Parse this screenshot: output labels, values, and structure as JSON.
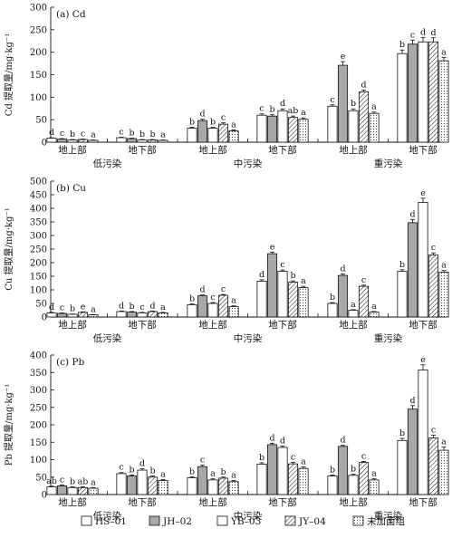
{
  "chart_data": [
    {
      "type": "bar",
      "title": "(a) Cd",
      "ylabel": "Cd 提取量/mg·kg⁻¹",
      "ylim": [
        0,
        300
      ],
      "yticks": [
        0,
        50,
        100,
        150,
        200,
        250,
        300
      ],
      "categories": [
        "地上部",
        "地下部",
        "地上部",
        "地下部",
        "地上部",
        "地下部"
      ],
      "groups": [
        "低污染",
        "中污染",
        "重污染"
      ],
      "series": [
        {
          "name": "HS–01",
          "values": [
            9,
            10,
            31,
            60,
            80,
            197
          ],
          "letters": [
            "d",
            "c",
            "b",
            "c",
            "c",
            "b"
          ]
        },
        {
          "name": "JH–02",
          "values": [
            7,
            8,
            48,
            58,
            171,
            218
          ],
          "letters": [
            "c",
            "b",
            "d",
            "b",
            "e",
            "c"
          ]
        },
        {
          "name": "YB–03",
          "values": [
            5,
            5,
            31,
            70,
            70,
            223
          ],
          "letters": [
            "b",
            "b",
            "b",
            "d",
            "b",
            "d"
          ]
        },
        {
          "name": "JY–04",
          "values": [
            6,
            5,
            40,
            55,
            112,
            223
          ],
          "letters": [
            "c",
            "b",
            "c",
            "ab",
            "d",
            "d"
          ]
        },
        {
          "name": "未加菌组",
          "values": [
            4,
            4,
            25,
            51,
            64,
            181
          ],
          "letters": [
            "a",
            "a",
            "a",
            "a",
            "a",
            "a"
          ]
        }
      ],
      "errors": [
        [
          1,
          1,
          2,
          3,
          3,
          8
        ],
        [
          1,
          1,
          3,
          3,
          8,
          9
        ],
        [
          1,
          1,
          2,
          4,
          4,
          10
        ],
        [
          1,
          1,
          3,
          3,
          4,
          9
        ],
        [
          1,
          1,
          2,
          3,
          3,
          7
        ]
      ]
    },
    {
      "type": "bar",
      "title": "(b) Cu",
      "ylabel": "Cu 提取量/mg·kg⁻¹",
      "ylim": [
        0,
        500
      ],
      "yticks": [
        0,
        50,
        100,
        150,
        200,
        250,
        300,
        350,
        400,
        450,
        500
      ],
      "categories": [
        "地上部",
        "地下部",
        "地上部",
        "地下部",
        "地上部",
        "地下部"
      ],
      "groups": [
        "低污染",
        "中污染",
        "重污染"
      ],
      "series": [
        {
          "name": "HS–01",
          "values": [
            15,
            20,
            45,
            132,
            50,
            168
          ],
          "letters": [
            "d",
            "d",
            "b",
            "d",
            "b",
            "b"
          ]
        },
        {
          "name": "JH–02",
          "values": [
            13,
            18,
            78,
            233,
            153,
            347
          ],
          "letters": [
            "c",
            "b",
            "d",
            "e",
            "d",
            "d"
          ]
        },
        {
          "name": "YB–03",
          "values": [
            10,
            15,
            50,
            168,
            25,
            422
          ],
          "letters": [
            "b",
            "c",
            "c",
            "c",
            "a",
            "e"
          ]
        },
        {
          "name": "JY–04",
          "values": [
            17,
            20,
            80,
            128,
            113,
            228
          ],
          "letters": [
            "e",
            "d",
            "c",
            "b",
            "c",
            "c"
          ]
        },
        {
          "name": "未加菌组",
          "values": [
            8,
            15,
            38,
            108,
            18,
            165
          ],
          "letters": [
            "a",
            "a",
            "a",
            "a",
            "a",
            "a"
          ]
        }
      ],
      "errors": [
        [
          2,
          2,
          3,
          5,
          3,
          6
        ],
        [
          2,
          2,
          3,
          6,
          5,
          12
        ],
        [
          1,
          2,
          3,
          5,
          2,
          15
        ],
        [
          2,
          2,
          3,
          5,
          4,
          8
        ],
        [
          1,
          2,
          3,
          5,
          2,
          6
        ]
      ]
    },
    {
      "type": "bar",
      "title": "(c) Pb",
      "ylabel": "Pb 提取量/mg·kg⁻¹",
      "ylim": [
        0,
        400
      ],
      "yticks": [
        0,
        50,
        100,
        150,
        200,
        250,
        300,
        350,
        400
      ],
      "categories": [
        "地上部",
        "地下部",
        "地上部",
        "地下部",
        "地上部",
        "地下部"
      ],
      "groups": [
        "低污染",
        "中污染",
        "重污染"
      ],
      "series": [
        {
          "name": "HS–01",
          "values": [
            22,
            60,
            48,
            87,
            53,
            155
          ],
          "letters": [
            "ab",
            "c",
            "b",
            "b",
            "b",
            "b"
          ]
        },
        {
          "name": "JH–02",
          "values": [
            25,
            53,
            80,
            143,
            138,
            245
          ],
          "letters": [
            "c",
            "b",
            "c",
            "d",
            "d",
            "d"
          ]
        },
        {
          "name": "YB–03",
          "values": [
            20,
            70,
            42,
            135,
            55,
            357
          ],
          "letters": [
            "b",
            "d",
            "a",
            "d",
            "b",
            "e"
          ]
        },
        {
          "name": "JY–04",
          "values": [
            20,
            50,
            47,
            88,
            92,
            162
          ],
          "letters": [
            "ab",
            "b",
            "b",
            "c",
            "c",
            "c"
          ]
        },
        {
          "name": "未加菌组",
          "values": [
            18,
            40,
            37,
            75,
            42,
            127
          ],
          "letters": [
            "a",
            "a",
            "a",
            "a",
            "a",
            "a"
          ]
        }
      ],
      "errors": [
        [
          2,
          3,
          3,
          4,
          3,
          6
        ],
        [
          2,
          3,
          4,
          4,
          3,
          10
        ],
        [
          2,
          4,
          3,
          4,
          3,
          15
        ],
        [
          2,
          3,
          3,
          4,
          3,
          8
        ],
        [
          2,
          3,
          3,
          4,
          3,
          9
        ]
      ]
    }
  ],
  "legend": {
    "position": "bottom",
    "items": [
      "HS–01",
      "JH–02",
      "YB–03",
      "JY–04",
      "未加菌组"
    ]
  }
}
